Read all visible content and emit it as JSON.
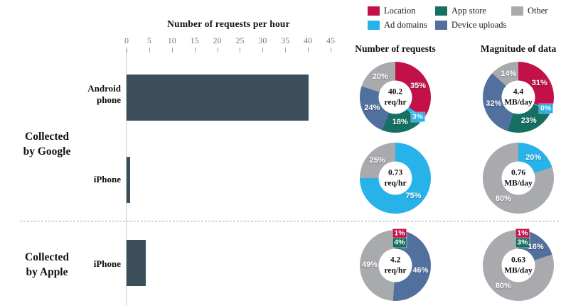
{
  "headers": {
    "bar_title": "Number of requests per hour",
    "requests_col": "Number of requests",
    "magnitude_col": "Magnitude of data"
  },
  "group_labels": [
    {
      "lines": [
        "Collected",
        "by Google"
      ]
    },
    {
      "lines": [
        "Collected",
        "by Apple"
      ]
    }
  ],
  "legend": {
    "items": [
      {
        "label": "Location",
        "color": "#C21148"
      },
      {
        "label": "App store",
        "color": "#157063"
      },
      {
        "label": "Other",
        "color": "#A8AAAD"
      },
      {
        "label": "Ad domains",
        "color": "#27B2E9"
      },
      {
        "label": "Device uploads",
        "color": "#51709E"
      }
    ]
  },
  "colors": {
    "bar": "#3C4E59",
    "axis_line": "#C6CCD0",
    "tick_text": "#6F7A84"
  },
  "chart_data": [
    {
      "type": "bar",
      "title": "Number of requests per hour",
      "orientation": "horizontal",
      "categories": [
        "Android phone (Collected by Google)",
        "iPhone (Collected by Google)",
        "iPhone (Collected by Apple)"
      ],
      "bar_labels": [
        [
          "Android",
          "phone"
        ],
        [
          "iPhone"
        ],
        [
          "iPhone"
        ]
      ],
      "values": [
        40.2,
        0.73,
        4.2
      ],
      "xlim": [
        0,
        45
      ],
      "xticks": [
        0,
        5,
        10,
        15,
        20,
        25,
        30,
        35,
        40,
        45
      ],
      "bar_color": "#3C4E59",
      "grid": false
    },
    {
      "type": "pie",
      "subtype": "donut",
      "column": "Number of requests",
      "device": "Android phone",
      "center_value": "40.2",
      "center_unit": "req/hr",
      "segments": [
        {
          "label": "Location",
          "pct": 35
        },
        {
          "label": "Ad domains",
          "pct": 3
        },
        {
          "label": "App store",
          "pct": 18
        },
        {
          "label": "Device uploads",
          "pct": 24
        },
        {
          "label": "Other",
          "pct": 20
        }
      ]
    },
    {
      "type": "pie",
      "subtype": "donut",
      "column": "Magnitude of data",
      "device": "Android phone",
      "center_value": "4.4",
      "center_unit": "MB/day",
      "segments": [
        {
          "label": "Location",
          "pct": 31
        },
        {
          "label": "Ad domains",
          "pct": 0
        },
        {
          "label": "App store",
          "pct": 23
        },
        {
          "label": "Device uploads",
          "pct": 32
        },
        {
          "label": "Other",
          "pct": 14
        }
      ]
    },
    {
      "type": "pie",
      "subtype": "donut",
      "column": "Number of requests",
      "device": "iPhone (Collected by Google)",
      "center_value": "0.73",
      "center_unit": "req/hr",
      "segments": [
        {
          "label": "Ad domains",
          "pct": 75
        },
        {
          "label": "Other",
          "pct": 25
        }
      ]
    },
    {
      "type": "pie",
      "subtype": "donut",
      "column": "Magnitude of data",
      "device": "iPhone (Collected by Google)",
      "center_value": "0.76",
      "center_unit": "MB/day",
      "segments": [
        {
          "label": "Ad domains",
          "pct": 20
        },
        {
          "label": "Other",
          "pct": 80
        }
      ]
    },
    {
      "type": "pie",
      "subtype": "donut",
      "column": "Number of requests",
      "device": "iPhone (Collected by Apple)",
      "center_value": "4.2",
      "center_unit": "req/hr",
      "segments": [
        {
          "label": "Location",
          "pct": 1
        },
        {
          "label": "App store",
          "pct": 4
        },
        {
          "label": "Device uploads",
          "pct": 46
        },
        {
          "label": "Other",
          "pct": 49
        }
      ]
    },
    {
      "type": "pie",
      "subtype": "donut",
      "column": "Magnitude of data",
      "device": "iPhone (Collected by Apple)",
      "center_value": "0.63",
      "center_unit": "MB/day",
      "segments": [
        {
          "label": "Location",
          "pct": 1
        },
        {
          "label": "App store",
          "pct": 3
        },
        {
          "label": "Device uploads",
          "pct": 16
        },
        {
          "label": "Other",
          "pct": 80
        }
      ]
    }
  ]
}
